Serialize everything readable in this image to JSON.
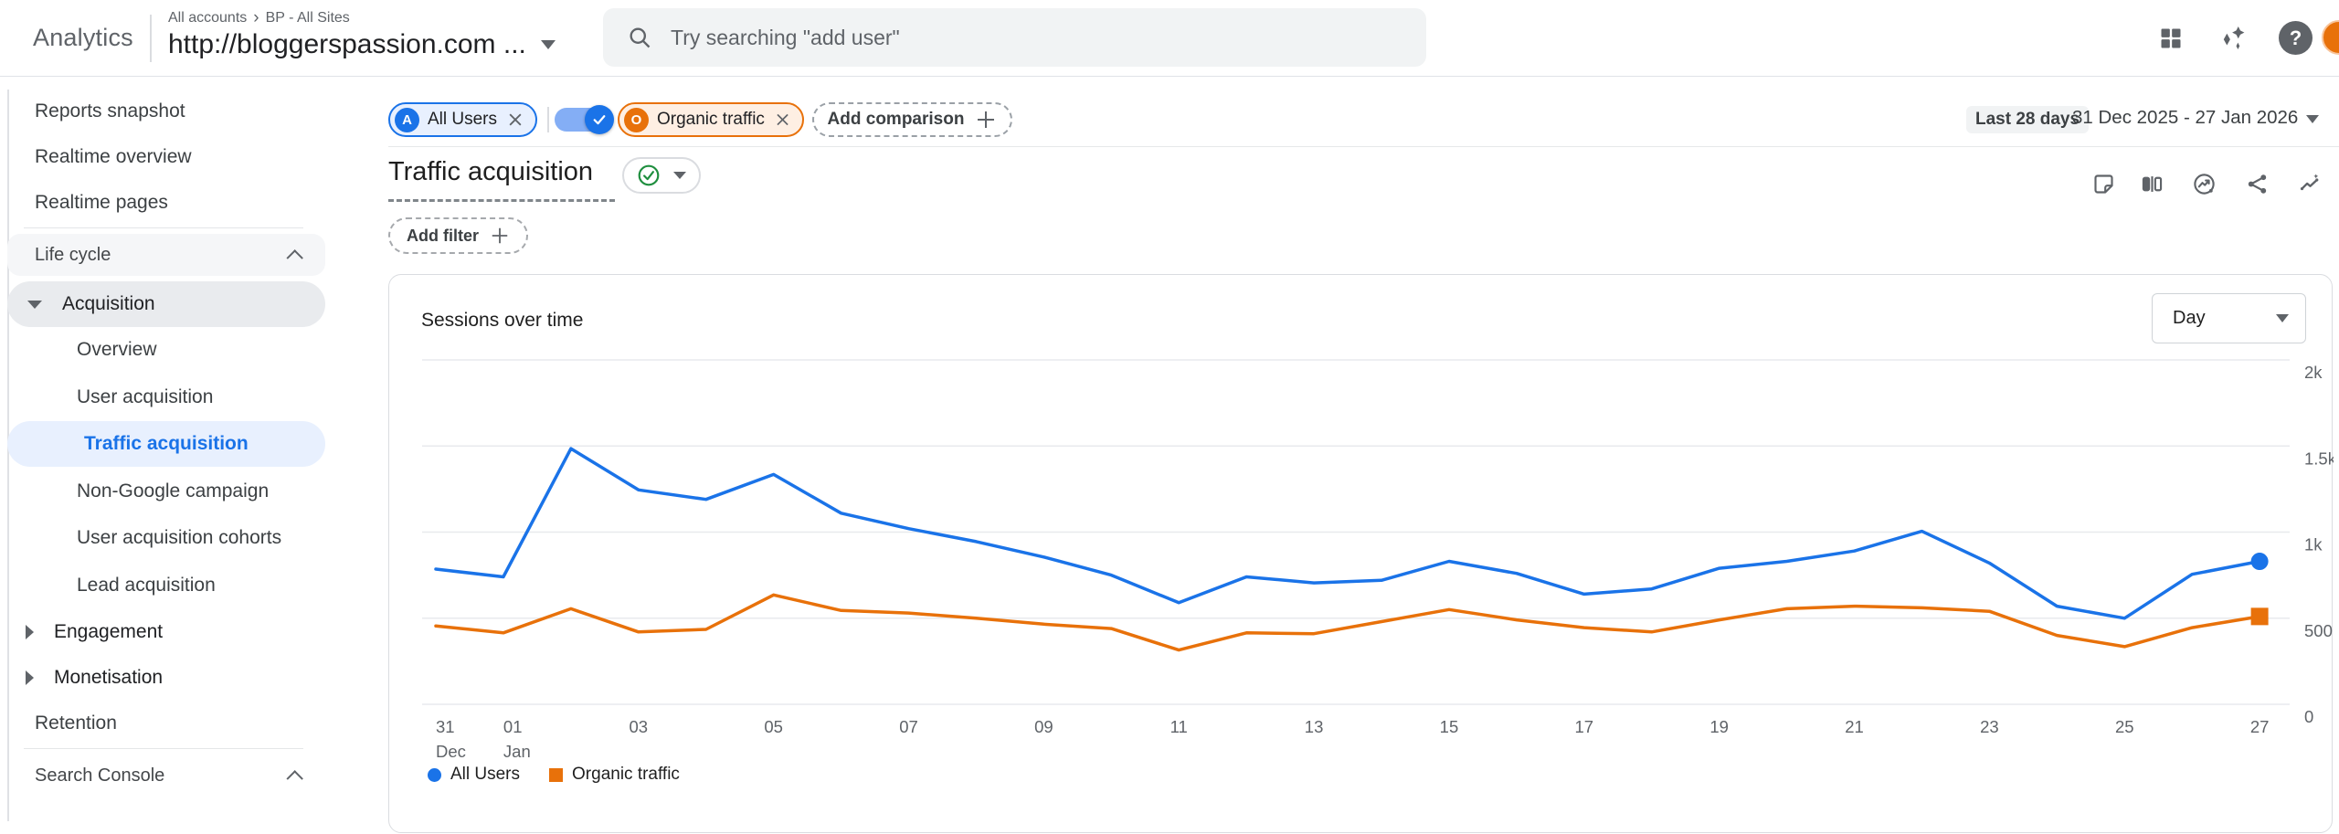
{
  "header": {
    "logo": "Analytics",
    "breadcrumb": [
      "All accounts",
      "BP - All Sites"
    ],
    "breadcrumb_separator": "›",
    "property_name": "http://bloggerspassion.com ...",
    "search": {
      "placeholder": "Try searching \"add user\""
    },
    "help_glyph": "?"
  },
  "comparison_bar": {
    "all_users": {
      "badge": "A",
      "label": "All Users"
    },
    "organic": {
      "badge": "O",
      "label": "Organic traffic"
    },
    "toggle_on": true,
    "add_comparison_label": "Add comparison",
    "date_preset": "Last 28 days",
    "date_range": "31 Dec 2025 - 27 Jan 2026"
  },
  "report_header": {
    "title": "Traffic acquisition",
    "add_filter_label": "Add filter"
  },
  "sidebar": {
    "items": [
      {
        "label": "Reports snapshot",
        "type": "item"
      },
      {
        "label": "Realtime overview",
        "type": "item"
      },
      {
        "label": "Realtime pages",
        "type": "item"
      },
      {
        "type": "divider"
      },
      {
        "label": "Life cycle",
        "type": "section",
        "shaded": true
      },
      {
        "label": "Acquisition",
        "type": "group",
        "expanded": true,
        "shaded": true
      },
      {
        "label": "Overview",
        "type": "child"
      },
      {
        "label": "User acquisition",
        "type": "child"
      },
      {
        "label": "Traffic acquisition",
        "type": "child",
        "selected": true
      },
      {
        "label": "Non-Google campaign",
        "type": "child"
      },
      {
        "label": "User acquisition cohorts",
        "type": "child"
      },
      {
        "label": "Lead acquisition",
        "type": "child"
      },
      {
        "label": "Engagement",
        "type": "group",
        "expanded": false
      },
      {
        "label": "Monetisation",
        "type": "group",
        "expanded": false
      },
      {
        "label": "Retention",
        "type": "item"
      },
      {
        "type": "divider"
      },
      {
        "label": "Search Console",
        "type": "section"
      }
    ]
  },
  "chart_data": {
    "type": "line",
    "title": "Sessions over time",
    "granularity": "Day",
    "ylim": [
      0,
      2000
    ],
    "grid": "horizontal",
    "legend_position": "bottom-left",
    "yticks": [
      {
        "value": 0,
        "label": "0"
      },
      {
        "value": 500,
        "label": "500"
      },
      {
        "value": 1000,
        "label": "1k"
      },
      {
        "value": 1500,
        "label": "1.5k"
      },
      {
        "value": 2000,
        "label": "2k"
      }
    ],
    "x": [
      "31 Dec",
      "01 Jan",
      "02 Jan",
      "03 Jan",
      "04 Jan",
      "05 Jan",
      "06 Jan",
      "07 Jan",
      "08 Jan",
      "09 Jan",
      "10 Jan",
      "11 Jan",
      "12 Jan",
      "13 Jan",
      "14 Jan",
      "15 Jan",
      "16 Jan",
      "17 Jan",
      "18 Jan",
      "19 Jan",
      "20 Jan",
      "21 Jan",
      "22 Jan",
      "23 Jan",
      "24 Jan",
      "25 Jan",
      "26 Jan",
      "27 Jan"
    ],
    "x_ticks": [
      {
        "index": 0,
        "label": "31",
        "sublabel": "Dec"
      },
      {
        "index": 1,
        "label": "01",
        "sublabel": "Jan"
      },
      {
        "index": 3,
        "label": "03"
      },
      {
        "index": 5,
        "label": "05"
      },
      {
        "index": 7,
        "label": "07"
      },
      {
        "index": 9,
        "label": "09"
      },
      {
        "index": 11,
        "label": "11"
      },
      {
        "index": 13,
        "label": "13"
      },
      {
        "index": 15,
        "label": "15"
      },
      {
        "index": 17,
        "label": "17"
      },
      {
        "index": 19,
        "label": "19"
      },
      {
        "index": 21,
        "label": "21"
      },
      {
        "index": 23,
        "label": "23"
      },
      {
        "index": 25,
        "label": "25"
      },
      {
        "index": 27,
        "label": "27"
      }
    ],
    "series": [
      {
        "name": "All Users",
        "color": "#1a73e8",
        "marker": "circle",
        "values": [
          785,
          740,
          1485,
          1245,
          1190,
          1335,
          1110,
          1020,
          945,
          855,
          750,
          590,
          740,
          705,
          720,
          830,
          760,
          640,
          670,
          790,
          830,
          890,
          1005,
          820,
          570,
          500,
          755,
          830
        ]
      },
      {
        "name": "Organic traffic",
        "color": "#e8710a",
        "marker": "square",
        "values": [
          455,
          415,
          555,
          420,
          435,
          635,
          545,
          530,
          500,
          465,
          440,
          315,
          415,
          410,
          480,
          550,
          490,
          445,
          420,
          490,
          555,
          570,
          560,
          540,
          400,
          335,
          445,
          510
        ]
      }
    ]
  }
}
